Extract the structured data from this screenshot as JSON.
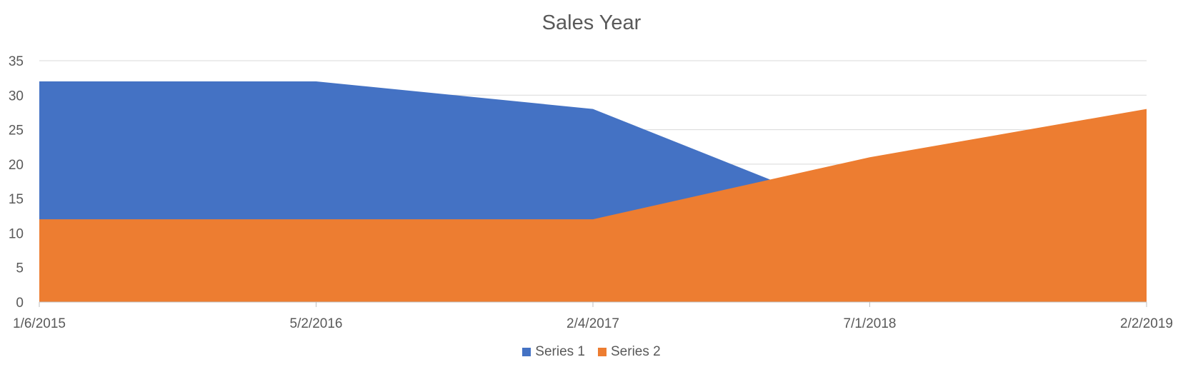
{
  "chart_data": {
    "type": "area",
    "title": "Sales Year",
    "xlabel": "",
    "ylabel": "",
    "x": [
      "1/6/2015",
      "5/2/2016",
      "2/4/2017",
      "7/1/2018",
      "2/2/2019"
    ],
    "series": [
      {
        "name": "Series 1",
        "values": [
          32,
          32,
          28,
          12,
          12
        ],
        "color": "#4472C4"
      },
      {
        "name": "Series 2",
        "values": [
          12,
          12,
          12,
          21,
          28
        ],
        "color": "#ED7D31"
      }
    ],
    "ylim": [
      0,
      35
    ],
    "yticks": [
      0,
      5,
      10,
      15,
      20,
      25,
      30,
      35
    ],
    "grid": true,
    "legend_position": "bottom"
  }
}
